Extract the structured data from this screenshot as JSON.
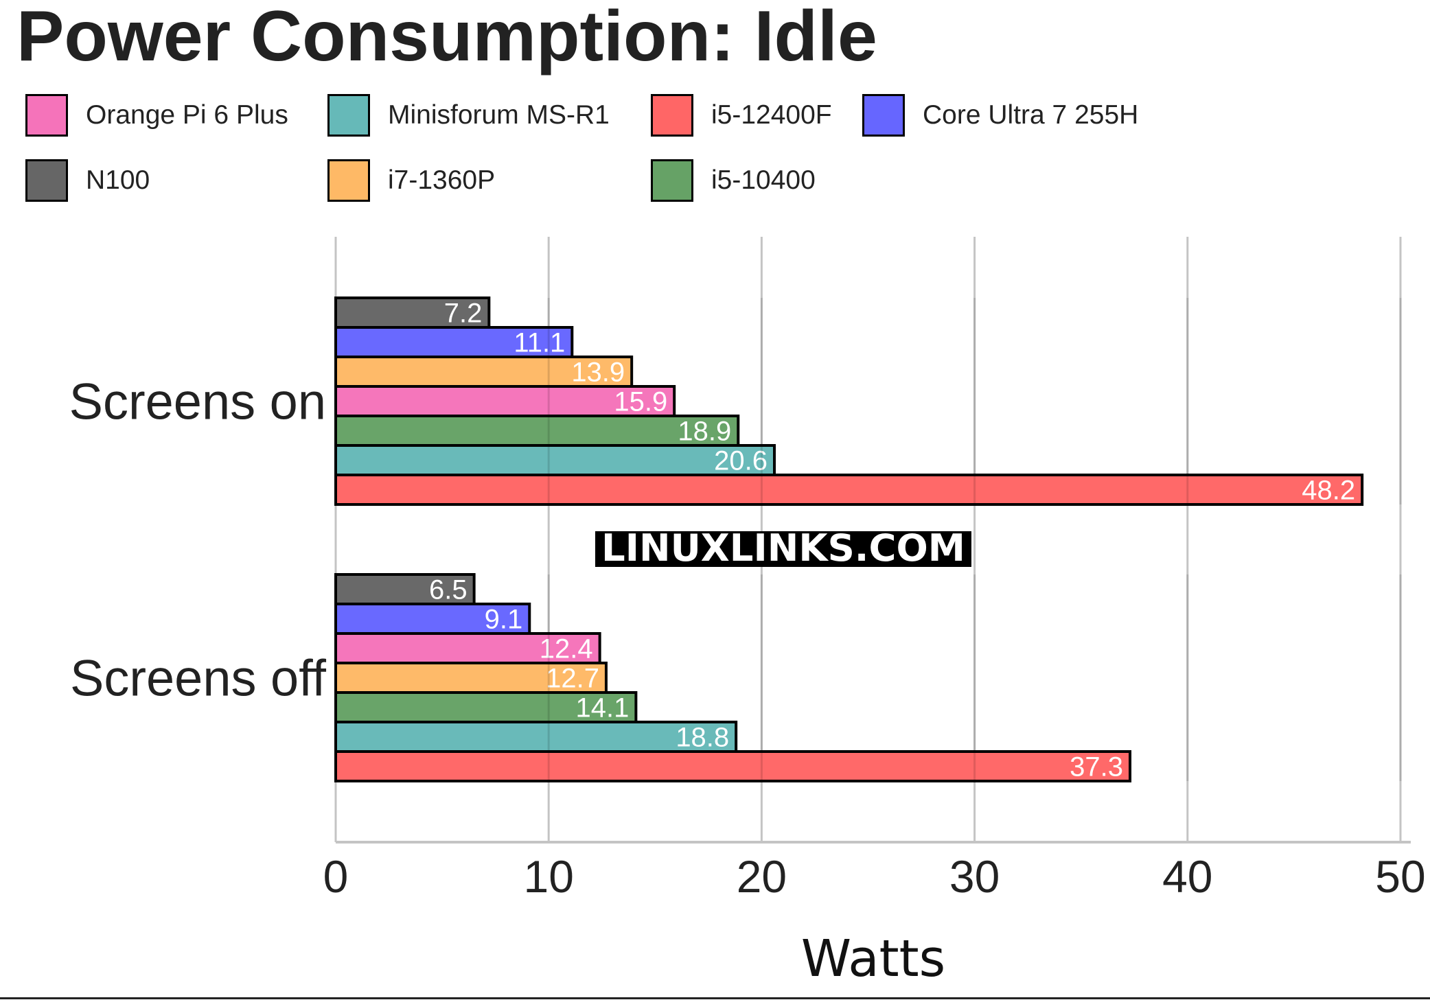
{
  "title": "Power Consumption: Idle",
  "watermark": "LINUXLINKS.COM",
  "chart_data": {
    "type": "bar",
    "orientation": "horizontal",
    "title": "Power Consumption: Idle",
    "xlabel": "Watts",
    "ylabel": "",
    "xlim": [
      0,
      50
    ],
    "xticks": [
      "0",
      "10",
      "20",
      "30",
      "40",
      "50"
    ],
    "grid": true,
    "legend_position": "top",
    "categories": [
      "Screens on",
      "Screens off"
    ],
    "series": [
      {
        "name": "Orange Pi 6 Plus",
        "color": "#F573BA",
        "values": [
          15.9,
          12.4
        ],
        "labels": [
          "15.9",
          "12.4"
        ]
      },
      {
        "name": "Minisforum MS-R1",
        "color": "#66B9B8",
        "values": [
          20.6,
          18.8
        ],
        "labels": [
          "20.6",
          "18.8"
        ]
      },
      {
        "name": "i5-12400F",
        "color": "#FF6666",
        "values": [
          48.2,
          37.3
        ],
        "labels": [
          "48.2",
          "37.3"
        ]
      },
      {
        "name": "Core Ultra 7 255H",
        "color": "#6666FF",
        "values": [
          11.1,
          9.1
        ],
        "labels": [
          "11.1",
          "9.1"
        ]
      },
      {
        "name": "N100",
        "color": "#666666",
        "values": [
          7.2,
          6.5
        ],
        "labels": [
          "7.2",
          "6.5"
        ]
      },
      {
        "name": "i7-1360P",
        "color": "#FEB966",
        "values": [
          13.9,
          12.7
        ],
        "labels": [
          "13.9",
          "12.7"
        ]
      },
      {
        "name": "i5-10400",
        "color": "#66A266",
        "values": [
          18.9,
          14.1
        ],
        "labels": [
          "18.9",
          "14.1"
        ]
      }
    ]
  }
}
